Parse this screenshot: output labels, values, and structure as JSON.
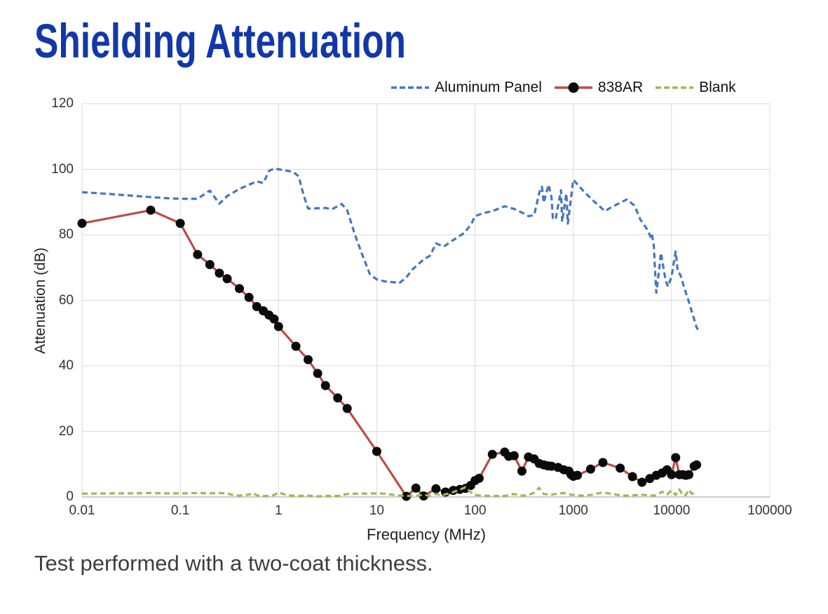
{
  "page": {
    "title": "Shielding Attenuation",
    "footnote": "Test performed with a two-coat thickness."
  },
  "colors": {
    "title": "#1238A8",
    "grid": "#D9D9D9",
    "axis_line": "#BFBFBF",
    "tick_text": "#333333",
    "aluminum_panel": "#4576BE",
    "series_838ar": "#BE4B48",
    "marker_838ar": "#0A0A0A",
    "blank": "#9ABA59"
  },
  "chart_data": {
    "type": "line",
    "title": "",
    "xlabel": "Frequency (MHz)",
    "ylabel": "Attenuation (dB)",
    "x_scale": "log",
    "xlim": [
      0.01,
      100000
    ],
    "ylim": [
      0,
      120
    ],
    "grid": true,
    "legend_position": "top",
    "x_ticks": [
      "0.01",
      "0.1",
      "1",
      "10",
      "100",
      "1000",
      "10000",
      "100000"
    ],
    "y_ticks": [
      0,
      20,
      40,
      60,
      80,
      100,
      120
    ],
    "series": [
      {
        "name": "Aluminum Panel",
        "style": "dashed",
        "marker": "none",
        "color_key": "aluminum_panel",
        "points": [
          [
            0.01,
            93
          ],
          [
            0.02,
            92.4
          ],
          [
            0.03,
            92
          ],
          [
            0.05,
            91.5
          ],
          [
            0.07,
            91.2
          ],
          [
            0.1,
            91
          ],
          [
            0.15,
            91
          ],
          [
            0.2,
            93.5
          ],
          [
            0.25,
            89.5
          ],
          [
            0.3,
            91.8
          ],
          [
            0.4,
            94
          ],
          [
            0.5,
            95.3
          ],
          [
            0.6,
            96.3
          ],
          [
            0.7,
            95.8
          ],
          [
            0.8,
            99.5
          ],
          [
            0.9,
            100.2
          ],
          [
            1,
            100
          ],
          [
            1.2,
            99.6
          ],
          [
            1.4,
            99.2
          ],
          [
            1.6,
            97.9
          ],
          [
            1.8,
            92.1
          ],
          [
            2,
            88
          ],
          [
            2.5,
            88.1
          ],
          [
            3,
            88.2
          ],
          [
            3.5,
            87.8
          ],
          [
            4.4,
            89.4
          ],
          [
            5,
            87.5
          ],
          [
            6,
            80
          ],
          [
            7,
            74.5
          ],
          [
            8.5,
            68
          ],
          [
            10,
            66.4
          ],
          [
            12,
            65.8
          ],
          [
            15,
            65.5
          ],
          [
            17,
            65.3
          ],
          [
            20,
            67
          ],
          [
            23,
            69.4
          ],
          [
            30,
            72.5
          ],
          [
            35,
            73.7
          ],
          [
            40,
            77.4
          ],
          [
            48,
            76.4
          ],
          [
            56,
            77.8
          ],
          [
            78,
            80.6
          ],
          [
            92,
            83.4
          ],
          [
            100,
            85.7
          ],
          [
            120,
            86.6
          ],
          [
            150,
            87.2
          ],
          [
            200,
            88.7
          ],
          [
            250,
            87.9
          ],
          [
            300,
            86.8
          ],
          [
            350,
            85.7
          ],
          [
            400,
            86
          ],
          [
            450,
            92.8
          ],
          [
            480,
            94.7
          ],
          [
            500,
            89.8
          ],
          [
            560,
            95.3
          ],
          [
            600,
            91.5
          ],
          [
            620,
            85
          ],
          [
            660,
            84.7
          ],
          [
            750,
            93.6
          ],
          [
            770,
            84
          ],
          [
            850,
            92.6
          ],
          [
            880,
            83.4
          ],
          [
            1000,
            96.8
          ],
          [
            1300,
            93
          ],
          [
            1600,
            90.4
          ],
          [
            2100,
            87.2
          ],
          [
            2400,
            88.3
          ],
          [
            3300,
            90.4
          ],
          [
            3500,
            90.8
          ],
          [
            4200,
            88.9
          ],
          [
            4800,
            84.7
          ],
          [
            5700,
            81.5
          ],
          [
            6100,
            79.4
          ],
          [
            6300,
            80.4
          ],
          [
            6600,
            76.6
          ],
          [
            6800,
            68.7
          ],
          [
            7000,
            62.3
          ],
          [
            7500,
            69.6
          ],
          [
            7800,
            74.5
          ],
          [
            8700,
            66
          ],
          [
            9200,
            64.2
          ],
          [
            10000,
            67.4
          ],
          [
            11000,
            74.9
          ],
          [
            11600,
            68.5
          ],
          [
            12200,
            68
          ],
          [
            14000,
            62.3
          ],
          [
            15000,
            59.6
          ],
          [
            18000,
            51.7
          ],
          [
            19000,
            50.6
          ]
        ]
      },
      {
        "name": "838AR",
        "style": "solid",
        "marker": "circle",
        "color_key": "series_838ar",
        "marker_color_key": "marker_838ar",
        "points": [
          [
            0.01,
            83.5
          ],
          [
            0.05,
            87.5
          ],
          [
            0.1,
            83.5
          ],
          [
            0.15,
            74
          ],
          [
            0.2,
            70.9
          ],
          [
            0.25,
            68.3
          ],
          [
            0.3,
            66.6
          ],
          [
            0.4,
            63.6
          ],
          [
            0.5,
            60.9
          ],
          [
            0.6,
            58.1
          ],
          [
            0.7,
            56.8
          ],
          [
            0.8,
            55.5
          ],
          [
            0.9,
            54.3
          ],
          [
            1,
            52
          ],
          [
            1.5,
            46
          ],
          [
            2,
            41.9
          ],
          [
            2.5,
            37.7
          ],
          [
            3,
            34
          ],
          [
            4,
            30.2
          ],
          [
            5,
            27
          ],
          [
            10,
            13.9
          ],
          [
            20,
            0.2
          ],
          [
            25,
            2.7
          ],
          [
            30,
            0.3
          ],
          [
            40,
            2.5
          ],
          [
            50,
            1.5
          ],
          [
            60,
            2
          ],
          [
            70,
            2.3
          ],
          [
            80,
            2.6
          ],
          [
            90,
            3.5
          ],
          [
            100,
            5
          ],
          [
            110,
            5.7
          ],
          [
            150,
            13
          ],
          [
            200,
            13.7
          ],
          [
            220,
            12.4
          ],
          [
            250,
            12.6
          ],
          [
            300,
            7.9
          ],
          [
            350,
            12.2
          ],
          [
            400,
            11.6
          ],
          [
            450,
            10.2
          ],
          [
            500,
            9.8
          ],
          [
            550,
            9.5
          ],
          [
            600,
            9.4
          ],
          [
            700,
            9
          ],
          [
            800,
            8.3
          ],
          [
            900,
            7.9
          ],
          [
            950,
            6.8
          ],
          [
            1000,
            6.3
          ],
          [
            1100,
            6.6
          ],
          [
            1500,
            8.5
          ],
          [
            2000,
            10.5
          ],
          [
            3000,
            8.8
          ],
          [
            4000,
            6.2
          ],
          [
            5000,
            4.5
          ],
          [
            6000,
            5.6
          ],
          [
            7000,
            6.6
          ],
          [
            8000,
            7.3
          ],
          [
            9000,
            8.3
          ],
          [
            10000,
            6.8
          ],
          [
            11000,
            12
          ],
          [
            12000,
            6.8
          ],
          [
            13000,
            6.8
          ],
          [
            14000,
            6.6
          ],
          [
            15000,
            6.8
          ],
          [
            17000,
            9.4
          ],
          [
            18000,
            9.8
          ]
        ]
      },
      {
        "name": "Blank",
        "style": "dashed",
        "marker": "none",
        "color_key": "blank",
        "points": [
          [
            0.01,
            1.0
          ],
          [
            0.02,
            1.1
          ],
          [
            0.03,
            1.1
          ],
          [
            0.05,
            1.2
          ],
          [
            0.07,
            1.1
          ],
          [
            0.1,
            1.1
          ],
          [
            0.15,
            1.2
          ],
          [
            0.2,
            1.1
          ],
          [
            0.25,
            1.2
          ],
          [
            0.3,
            1.1
          ],
          [
            0.35,
            0.5
          ],
          [
            0.4,
            0.4
          ],
          [
            0.5,
            0.7
          ],
          [
            0.55,
            1.2
          ],
          [
            0.6,
            0.5
          ],
          [
            0.7,
            0.3
          ],
          [
            0.8,
            0.3
          ],
          [
            0.9,
            0.6
          ],
          [
            1,
            1.4
          ],
          [
            1.2,
            0.6
          ],
          [
            1.5,
            0.3
          ],
          [
            2,
            0.4
          ],
          [
            2.5,
            0.2
          ],
          [
            3,
            0.3
          ],
          [
            4,
            0.3
          ],
          [
            5,
            0.9
          ],
          [
            6,
            1.0
          ],
          [
            7,
            1.1
          ],
          [
            8,
            1.0
          ],
          [
            10,
            1.1
          ],
          [
            12,
            1.0
          ],
          [
            15,
            0.6
          ],
          [
            20,
            0.3
          ],
          [
            25,
            0.4
          ],
          [
            30,
            0.6
          ],
          [
            35,
            0.4
          ],
          [
            40,
            0.9
          ],
          [
            45,
            0.5
          ],
          [
            50,
            0.8
          ],
          [
            60,
            1.5
          ],
          [
            70,
            2.2
          ],
          [
            80,
            3.0
          ],
          [
            90,
            1.5
          ],
          [
            100,
            0.6
          ],
          [
            120,
            0.4
          ],
          [
            150,
            0.3
          ],
          [
            200,
            0.3
          ],
          [
            250,
            0.9
          ],
          [
            300,
            0.4
          ],
          [
            350,
            0.6
          ],
          [
            400,
            1.3
          ],
          [
            450,
            2.8
          ],
          [
            480,
            1.5
          ],
          [
            500,
            0.9
          ],
          [
            600,
            0.7
          ],
          [
            700,
            1.0
          ],
          [
            800,
            1.2
          ],
          [
            900,
            0.8
          ],
          [
            1000,
            0.6
          ],
          [
            1200,
            0.4
          ],
          [
            1500,
            0.6
          ],
          [
            2000,
            1.4
          ],
          [
            2500,
            0.9
          ],
          [
            3000,
            0.5
          ],
          [
            3500,
            0.4
          ],
          [
            4000,
            0.5
          ],
          [
            5000,
            0.7
          ],
          [
            6000,
            0.4
          ],
          [
            7000,
            0.5
          ],
          [
            8000,
            1.6
          ],
          [
            9000,
            0.8
          ],
          [
            10000,
            2.0
          ],
          [
            11000,
            0.6
          ],
          [
            12000,
            2.3
          ],
          [
            13000,
            0.5
          ],
          [
            14000,
            0.6
          ],
          [
            15000,
            2.2
          ],
          [
            16000,
            1.0
          ],
          [
            18000,
            1.2
          ]
        ]
      }
    ]
  }
}
